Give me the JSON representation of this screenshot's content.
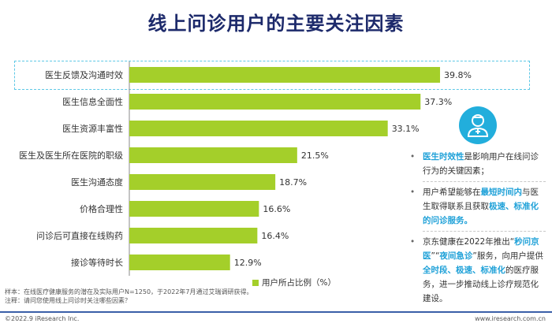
{
  "title": "线上问诊用户的主要关注因素",
  "chart_data": {
    "type": "bar",
    "orientation": "horizontal",
    "categories": [
      "医生反馈及沟通时效",
      "医生信息全面性",
      "医生资源丰富性",
      "医生及医生所在医院的职级",
      "医生沟通态度",
      "价格合理性",
      "问诊后可直接在线购药",
      "接诊等待时长"
    ],
    "values": [
      39.8,
      37.3,
      33.1,
      21.5,
      18.7,
      16.6,
      16.4,
      12.9
    ],
    "value_labels": [
      "39.8%",
      "37.3%",
      "33.1%",
      "21.5%",
      "18.7%",
      "16.6%",
      "16.4%",
      "12.9%"
    ],
    "series": [
      {
        "name": "用户所占比例（%）",
        "values": [
          39.8,
          37.3,
          33.1,
          21.5,
          18.7,
          16.6,
          16.4,
          12.9
        ]
      }
    ],
    "xlim": [
      0,
      40
    ],
    "grid": false,
    "legend_position": "bottom",
    "bar_color": "#a4cf2a",
    "highlight_category": "医生反馈及沟通时效",
    "highlight_color": "#5ec8e6"
  },
  "legend": {
    "label": "用户所占比例（%）"
  },
  "icon": {
    "name": "doctor-icon",
    "color": "#22aedc"
  },
  "bullets": [
    [
      {
        "t": "医生时效性",
        "h": true
      },
      {
        "t": "是影响用户在线问诊行为的关键因素；",
        "h": false
      }
    ],
    [
      {
        "t": "用户希望能够在",
        "h": false
      },
      {
        "t": "最短时间内",
        "h": true
      },
      {
        "t": "与医生取得联系且获取",
        "h": false
      },
      {
        "t": "极速、标准化的问诊服务。",
        "h": true
      }
    ],
    [
      {
        "t": "京东健康在2022年推出“",
        "h": false
      },
      {
        "t": "秒问京医",
        "h": true
      },
      {
        "t": "”“",
        "h": false
      },
      {
        "t": "夜间急诊",
        "h": true
      },
      {
        "t": "”服务，向用户提供",
        "h": false
      },
      {
        "t": "全时段、极速、标准化",
        "h": true
      },
      {
        "t": "的医疗服务，进一步推动线上诊疗规范化建设。",
        "h": false
      }
    ]
  ],
  "notes": {
    "sample": "样本：在线医疗健康服务的潜在及实际用户N=1250，于2022年7月通过艾瑞调研获得。",
    "note": "注释：请问您使用线上问诊时关注哪些因素？"
  },
  "footer": {
    "left": "©2022.9 iResearch Inc.",
    "right": "www.iresearch.com.cn"
  },
  "colors": {
    "title": "#1d2a6b",
    "accent": "#1fa1d8",
    "footer_line": "#3a5fa8"
  }
}
